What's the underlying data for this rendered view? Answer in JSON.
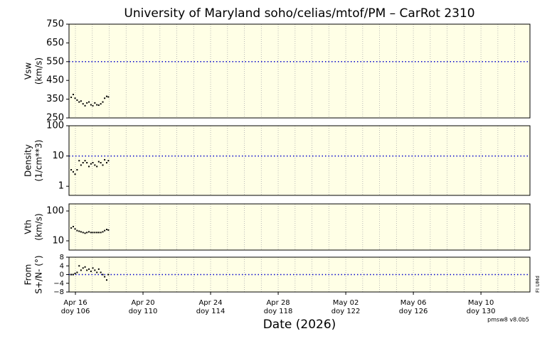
{
  "title": "University of Maryland  soho/celias/mtof/PM – CarRot 2310",
  "xlabel": "Date (2026)",
  "version": "pmsw8 v8.0b5",
  "side_note": "FI UMd",
  "xlim": [
    105.62,
    132.9
  ],
  "xticks": [
    {
      "value": 106,
      "label": "Apr 16",
      "doy": "doy 106"
    },
    {
      "value": 110,
      "label": "Apr 20",
      "doy": "doy 110"
    },
    {
      "value": 114,
      "label": "Apr 24",
      "doy": "doy 114"
    },
    {
      "value": 118,
      "label": "Apr 28",
      "doy": "doy 118"
    },
    {
      "value": 122,
      "label": "May 02",
      "doy": "doy 122"
    },
    {
      "value": 126,
      "label": "May 06",
      "doy": "doy 126"
    },
    {
      "value": 130,
      "label": "May 10",
      "doy": "doy 130"
    }
  ],
  "xgrid": [
    106,
    107,
    108,
    109,
    110,
    111,
    112,
    113,
    114,
    115,
    116,
    117,
    118,
    119,
    120,
    121,
    122,
    123,
    124,
    125,
    126,
    127,
    128,
    129,
    130,
    131,
    132
  ],
  "chart_data": [
    {
      "type": "scatter",
      "ylabel": "Vsw",
      "yunit": "(km/s)",
      "log": false,
      "color": "#000000",
      "ref_color": "#0000cc",
      "ylim": [
        250,
        750
      ],
      "yticks": [
        250,
        350,
        450,
        550,
        650,
        750
      ],
      "reference_line": 550,
      "x": [
        105.75,
        105.87,
        105.98,
        106.1,
        106.22,
        106.33,
        106.45,
        106.57,
        106.68,
        106.8,
        106.92,
        107.03,
        107.15,
        107.27,
        107.38,
        107.5,
        107.62,
        107.73,
        107.85,
        107.95
      ],
      "values": [
        360,
        375,
        355,
        345,
        335,
        340,
        325,
        315,
        330,
        335,
        320,
        315,
        330,
        320,
        318,
        325,
        335,
        355,
        365,
        362
      ]
    },
    {
      "type": "scatter",
      "ylabel": "Density",
      "yunit": "(1/cm**3)",
      "log": true,
      "color": "#000000",
      "ref_color": "#0000cc",
      "ylim": [
        0.5,
        100
      ],
      "yticks": [
        1,
        10,
        100
      ],
      "reference_line": 10,
      "x": [
        105.75,
        105.87,
        105.98,
        106.1,
        106.22,
        106.33,
        106.45,
        106.57,
        106.68,
        106.8,
        106.92,
        107.03,
        107.15,
        107.27,
        107.38,
        107.5,
        107.62,
        107.73,
        107.85,
        107.95
      ],
      "values": [
        3.5,
        3,
        2.5,
        3.5,
        7,
        5,
        6,
        7,
        6,
        4.5,
        5.5,
        6,
        5,
        4.5,
        6.5,
        6,
        5,
        7.5,
        6,
        7
      ]
    },
    {
      "type": "scatter",
      "ylabel": "Vth",
      "yunit": "(km/s)",
      "log": true,
      "color": "#000000",
      "ylim": [
        4.9,
        173
      ],
      "yticks": [
        10,
        100
      ],
      "x": [
        105.75,
        105.87,
        105.98,
        106.1,
        106.22,
        106.33,
        106.45,
        106.57,
        106.68,
        106.8,
        106.92,
        107.03,
        107.15,
        107.27,
        107.38,
        107.5,
        107.62,
        107.73,
        107.85,
        107.95
      ],
      "values": [
        27,
        30,
        25,
        22,
        21,
        20,
        19,
        18,
        19,
        20,
        19,
        19,
        19,
        19,
        19,
        19,
        20,
        22,
        24,
        23
      ]
    },
    {
      "type": "scatter",
      "ylabel": "From",
      "yunit": "S+/N- (°)",
      "log": false,
      "color": "#000000",
      "ref_color": "#0000cc",
      "ylim": [
        -8,
        8
      ],
      "yticks": [
        {
          "value": -8,
          "label": "−8"
        },
        {
          "value": -4,
          "label": "−4"
        },
        0,
        4,
        8
      ],
      "reference_line": 0,
      "x": [
        105.75,
        105.87,
        105.98,
        106.1,
        106.22,
        106.33,
        106.45,
        106.57,
        106.68,
        106.8,
        106.92,
        107.03,
        107.15,
        107.27,
        107.38,
        107.5,
        107.62,
        107.73,
        107.85,
        107.95
      ],
      "values": [
        0,
        0,
        0.5,
        1,
        4,
        2,
        3,
        3.5,
        2,
        2.5,
        1.5,
        3,
        2,
        1,
        2.5,
        1,
        0,
        -1,
        -2.5,
        0
      ]
    }
  ]
}
